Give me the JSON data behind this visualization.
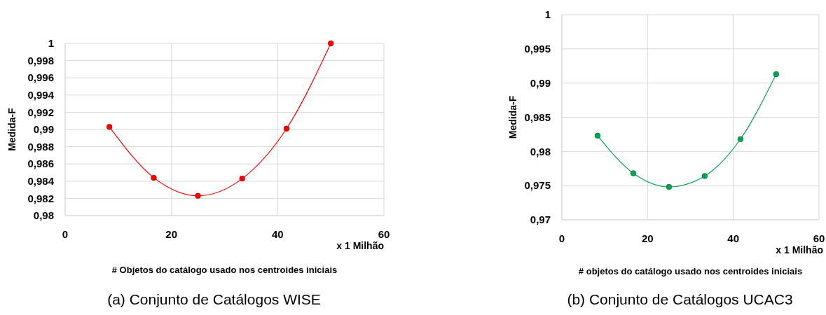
{
  "chart_data": [
    {
      "type": "line",
      "xlabel": "# Objetos do catálogo usado nos centroides iniciais",
      "ylabel": "Medida-F",
      "x": [
        8.33,
        16.67,
        25,
        33.33,
        41.67,
        50
      ],
      "series": [
        {
          "color": "#ff0000",
          "values": [
            0.9903,
            0.9844,
            0.9823,
            0.9843,
            0.9901,
            1.0
          ]
        }
      ],
      "xlim": [
        0,
        60
      ],
      "xticks": [
        0,
        20,
        40,
        60
      ],
      "ylim": [
        0.98,
        1
      ],
      "yticks": [
        {
          "value": 0.98,
          "label": "0,98"
        },
        {
          "value": 0.982,
          "label": "0,982"
        },
        {
          "value": 0.984,
          "label": "0,984"
        },
        {
          "value": 0.986,
          "label": "0,986"
        },
        {
          "value": 0.988,
          "label": "0,988"
        },
        {
          "value": 0.99,
          "label": "0,99"
        },
        {
          "value": 0.992,
          "label": "0,992"
        },
        {
          "value": 0.994,
          "label": "0,994"
        },
        {
          "value": 0.996,
          "label": "0,996"
        },
        {
          "value": 0.998,
          "label": "0,998"
        },
        {
          "value": 1,
          "label": "1"
        }
      ],
      "grid": true,
      "marker": "circle",
      "line_style": "solid",
      "annotations": [
        "x 1 Milhão",
        "(a) Conjunto de Catálogos WISE"
      ]
    },
    {
      "type": "line",
      "xlabel": "# objetos do catálogo usado nos centroides iniciais",
      "ylabel": "Medida-F",
      "x": [
        8.33,
        16.67,
        25,
        33.33,
        41.67,
        50
      ],
      "series": [
        {
          "color": "#00a650",
          "values": [
            0.9823,
            0.9768,
            0.9748,
            0.9764,
            0.9818,
            0.9913
          ]
        }
      ],
      "xlim": [
        0,
        60
      ],
      "xticks": [
        0,
        20,
        40,
        60
      ],
      "ylim": [
        0.97,
        1
      ],
      "yticks": [
        {
          "value": 0.97,
          "label": "0,97"
        },
        {
          "value": 0.975,
          "label": "0,975"
        },
        {
          "value": 0.98,
          "label": "0,98"
        },
        {
          "value": 0.985,
          "label": "0,985"
        },
        {
          "value": 0.99,
          "label": "0,99"
        },
        {
          "value": 0.995,
          "label": "0,995"
        },
        {
          "value": 1,
          "label": "1"
        }
      ],
      "grid": true,
      "marker": "circle",
      "line_style": "solid",
      "annotations": [
        "x 1 Milhão",
        "(b) Conjunto de Catálogos UCAC3"
      ]
    }
  ]
}
